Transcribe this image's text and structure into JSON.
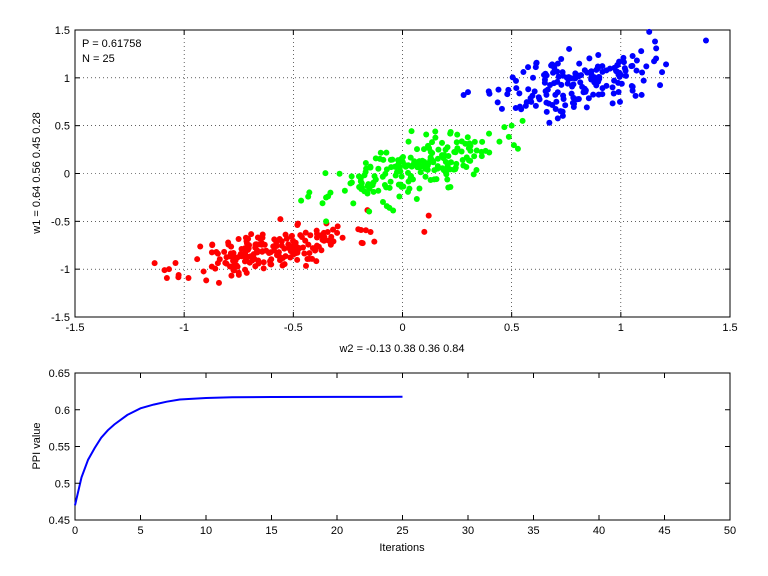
{
  "figure": {
    "background": "#ffffff"
  },
  "chart_data": [
    {
      "type": "scatter",
      "title": "",
      "xlabel": "w2 = -0.13  0.38  0.36  0.84",
      "ylabel": "w1 = 0.64  0.56  0.45  0.28",
      "xlim": [
        -1.5,
        1.5
      ],
      "ylim": [
        -1.5,
        1.5
      ],
      "xticks": [
        -1.5,
        -1,
        -0.5,
        0,
        0.5,
        1,
        1.5
      ],
      "yticks": [
        -1.5,
        -1,
        -0.5,
        0,
        0.5,
        1,
        1.5
      ],
      "xtick_labels": [
        "-1.5",
        "-1",
        "-0.5",
        "0",
        "0.5",
        "1",
        "1.5"
      ],
      "ytick_labels": [
        "-1.5",
        "-1",
        "-0.5",
        "0",
        "0.5",
        "1",
        "1.5"
      ],
      "grid": true,
      "annotations": [
        "P = 0.61758",
        "N = 25"
      ],
      "series": [
        {
          "color": "#ff0000",
          "cx": -0.6,
          "cy": -0.8,
          "sx": 0.19,
          "sy": 0.14,
          "count": 200,
          "rho": 0.6,
          "seed": 11,
          "extra": [
            [
              -1.09,
              -1.01
            ],
            [
              -0.19,
              -0.59
            ],
            [
              0.1,
              -0.61
            ],
            [
              0.12,
              -0.44
            ],
            [
              -0.36,
              -0.62
            ]
          ]
        },
        {
          "color": "#00ff00",
          "cx": 0.05,
          "cy": 0.05,
          "sx": 0.19,
          "sy": 0.17,
          "count": 200,
          "rho": 0.65,
          "seed": 23,
          "extra": [
            [
              0.5,
              0.5
            ],
            [
              0.55,
              0.55
            ],
            [
              -0.35,
              -0.5
            ],
            [
              -0.33,
              -0.2
            ]
          ]
        },
        {
          "color": "#0000ff",
          "cx": 0.8,
          "cy": 0.95,
          "sx": 0.17,
          "sy": 0.17,
          "count": 170,
          "rho": 0.45,
          "seed": 37,
          "extra": [
            [
              1.39,
              1.39
            ],
            [
              0.28,
              0.82
            ],
            [
              0.3,
              0.85
            ],
            [
              0.48,
              0.83
            ],
            [
              1.13,
              1.48
            ]
          ]
        }
      ]
    },
    {
      "type": "line",
      "title": "",
      "xlabel": "Iterations",
      "ylabel": "PPI value",
      "xlim": [
        0,
        50
      ],
      "ylim": [
        0.45,
        0.65
      ],
      "xticks": [
        0,
        5,
        10,
        15,
        20,
        25,
        30,
        35,
        40,
        45,
        50
      ],
      "yticks": [
        0.45,
        0.5,
        0.55,
        0.6,
        0.65
      ],
      "xtick_labels": [
        "0",
        "5",
        "10",
        "15",
        "20",
        "25",
        "30",
        "35",
        "40",
        "45",
        "50"
      ],
      "ytick_labels": [
        "0.45",
        "0.5",
        "0.55",
        "0.6",
        "0.65"
      ],
      "grid": false,
      "series": [
        {
          "color": "#0000ff",
          "x": [
            0,
            0.5,
            1,
            1.5,
            2,
            2.5,
            3,
            4,
            5,
            6,
            7,
            8,
            10,
            12,
            15,
            20,
            25
          ],
          "y": [
            0.47,
            0.508,
            0.532,
            0.548,
            0.562,
            0.572,
            0.58,
            0.593,
            0.602,
            0.607,
            0.611,
            0.614,
            0.616,
            0.617,
            0.6174,
            0.6175,
            0.6176
          ]
        }
      ]
    }
  ]
}
